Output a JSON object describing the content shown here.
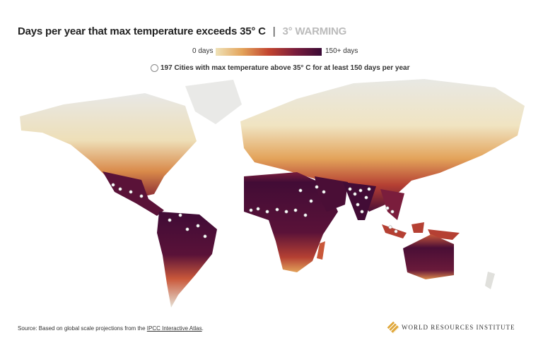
{
  "header": {
    "title": "Days per year that max temperature exceeds 35° C",
    "separator": "|",
    "scenario": "3° WARMING"
  },
  "legend": {
    "min_label": "0 days",
    "max_label": "150+ days",
    "cities_note": "197 Cities with max temperature above 35° C for at least 150 days per year"
  },
  "footer": {
    "source_prefix": "Source: Based on global scale projections from the ",
    "source_link": "IPCC Interactive Atlas",
    "source_suffix": ".",
    "logo": "WORLD RESOURCES INSTITUTE"
  }
}
